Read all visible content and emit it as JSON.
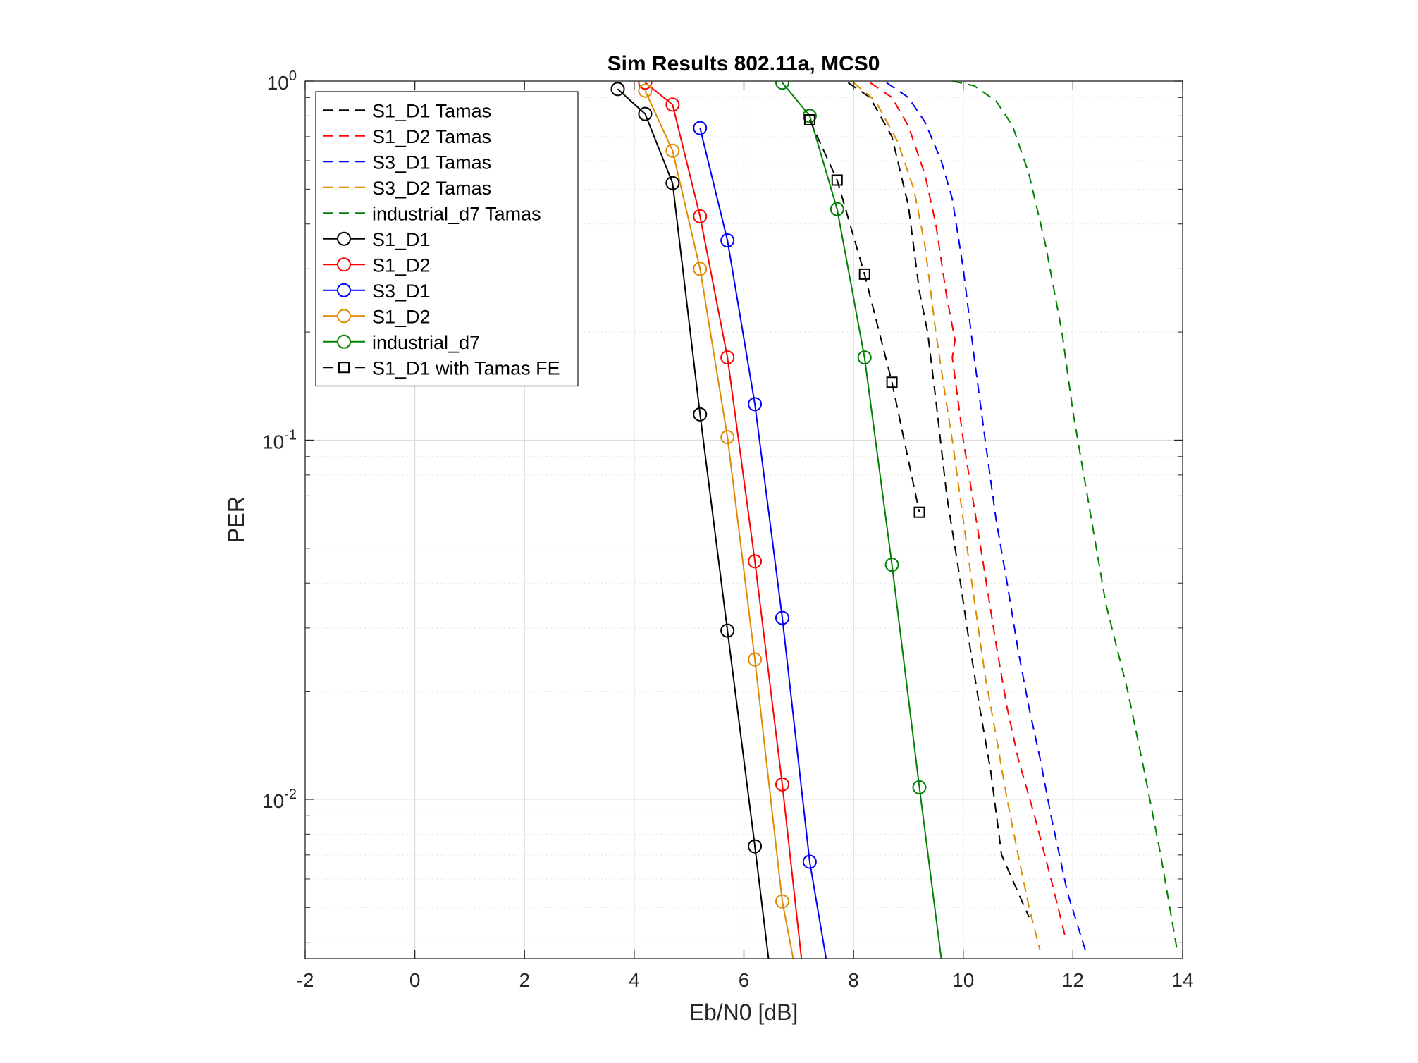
{
  "chart_data": {
    "type": "line",
    "title": "Sim Results 802.11a, MCS0",
    "xlabel": "Eb/N0 [dB]",
    "ylabel": "PER",
    "xlim": [
      -2,
      14
    ],
    "ylim": [
      0.0036,
      1
    ],
    "yscale": "log",
    "grid": true,
    "legend_position": "top-left",
    "xticks": [
      "-2",
      "0",
      "2",
      "4",
      "6",
      "8",
      "10",
      "12",
      "14"
    ],
    "xtick_values": [
      -2,
      0,
      2,
      4,
      6,
      8,
      10,
      12,
      14
    ],
    "yticks": [
      {
        "base": "10",
        "exp": "0",
        "value": 1
      },
      {
        "base": "10",
        "exp": "-1",
        "value": 0.1
      },
      {
        "base": "10",
        "exp": "-2",
        "value": 0.01
      }
    ],
    "series": [
      {
        "name": "S1_D1 Tamas",
        "color": "#000000",
        "style": "dashed",
        "marker": "none",
        "points": [
          [
            7.9,
            0.99
          ],
          [
            8.3,
            0.9
          ],
          [
            8.7,
            0.7
          ],
          [
            9.0,
            0.45
          ],
          [
            9.2,
            0.26
          ],
          [
            9.35,
            0.2
          ],
          [
            9.5,
            0.13
          ],
          [
            9.7,
            0.07
          ],
          [
            9.9,
            0.045
          ],
          [
            10.1,
            0.028
          ],
          [
            10.3,
            0.018
          ],
          [
            10.5,
            0.012
          ],
          [
            10.7,
            0.007
          ],
          [
            11.0,
            0.0055
          ],
          [
            11.2,
            0.0047
          ]
        ]
      },
      {
        "name": "S1_D2 Tamas",
        "color": "#ff0000",
        "style": "dashed",
        "marker": "none",
        "points": [
          [
            8.3,
            0.99
          ],
          [
            8.7,
            0.9
          ],
          [
            9.0,
            0.75
          ],
          [
            9.3,
            0.55
          ],
          [
            9.5,
            0.4
          ],
          [
            9.7,
            0.25
          ],
          [
            9.85,
            0.19
          ],
          [
            9.8,
            0.17
          ],
          [
            10.0,
            0.1
          ],
          [
            10.2,
            0.065
          ],
          [
            10.4,
            0.042
          ],
          [
            10.6,
            0.027
          ],
          [
            10.8,
            0.018
          ],
          [
            11.0,
            0.013
          ],
          [
            11.3,
            0.009
          ],
          [
            11.6,
            0.006
          ],
          [
            11.85,
            0.0042
          ]
        ]
      },
      {
        "name": "S3_D1 Tamas",
        "color": "#0000ff",
        "style": "dashed",
        "marker": "none",
        "points": [
          [
            8.6,
            0.99
          ],
          [
            9.0,
            0.9
          ],
          [
            9.3,
            0.77
          ],
          [
            9.6,
            0.6
          ],
          [
            9.8,
            0.47
          ],
          [
            10.0,
            0.3
          ],
          [
            10.2,
            0.17
          ],
          [
            10.4,
            0.1
          ],
          [
            10.6,
            0.06
          ],
          [
            10.8,
            0.04
          ],
          [
            11.0,
            0.026
          ],
          [
            11.2,
            0.018
          ],
          [
            11.4,
            0.013
          ],
          [
            11.6,
            0.009
          ],
          [
            11.9,
            0.0055
          ],
          [
            12.25,
            0.0037
          ]
        ]
      },
      {
        "name": "S3_D2 Tamas",
        "color": "#e08a00",
        "style": "dashed",
        "marker": "none",
        "points": [
          [
            8.0,
            0.99
          ],
          [
            8.4,
            0.88
          ],
          [
            8.8,
            0.68
          ],
          [
            9.1,
            0.5
          ],
          [
            9.3,
            0.35
          ],
          [
            9.5,
            0.2
          ],
          [
            9.65,
            0.14
          ],
          [
            9.8,
            0.1
          ],
          [
            10.0,
            0.06
          ],
          [
            10.2,
            0.036
          ],
          [
            10.4,
            0.022
          ],
          [
            10.6,
            0.015
          ],
          [
            10.8,
            0.01
          ],
          [
            11.0,
            0.007
          ],
          [
            11.2,
            0.005
          ],
          [
            11.4,
            0.0038
          ]
        ]
      },
      {
        "name": "industrial_d7 Tamas",
        "color": "#008000",
        "style": "dashed",
        "marker": "none",
        "points": [
          [
            9.8,
            1.0
          ],
          [
            10.2,
            0.97
          ],
          [
            10.6,
            0.88
          ],
          [
            10.9,
            0.75
          ],
          [
            11.2,
            0.55
          ],
          [
            11.5,
            0.35
          ],
          [
            11.8,
            0.2
          ],
          [
            12.0,
            0.12
          ],
          [
            12.3,
            0.065
          ],
          [
            12.6,
            0.035
          ],
          [
            13.0,
            0.02
          ],
          [
            13.3,
            0.012
          ],
          [
            13.6,
            0.007
          ],
          [
            13.9,
            0.0038
          ]
        ]
      },
      {
        "name": "S1_D1",
        "color": "#000000",
        "style": "solid",
        "marker": "circle",
        "points": [
          [
            3.7,
            0.95
          ],
          [
            4.2,
            0.81
          ],
          [
            4.7,
            0.52
          ],
          [
            5.2,
            0.118
          ],
          [
            5.7,
            0.0295
          ],
          [
            6.2,
            0.0074
          ],
          [
            6.45,
            0.0036
          ]
        ]
      },
      {
        "name": "S1_D2",
        "color": "#ff0000",
        "style": "solid",
        "marker": "circle",
        "points": [
          [
            4.2,
            0.99
          ],
          [
            4.7,
            0.86
          ],
          [
            5.2,
            0.42
          ],
          [
            5.7,
            0.17
          ],
          [
            6.2,
            0.046
          ],
          [
            6.7,
            0.011
          ],
          [
            7.05,
            0.0036
          ]
        ]
      },
      {
        "name": "S3_D1",
        "color": "#0000ff",
        "style": "solid",
        "marker": "circle",
        "points": [
          [
            5.2,
            0.74
          ],
          [
            5.7,
            0.36
          ],
          [
            6.2,
            0.126
          ],
          [
            6.7,
            0.032
          ],
          [
            7.2,
            0.0067
          ],
          [
            7.5,
            0.0036
          ]
        ]
      },
      {
        "name": "S1_D2",
        "color": "#e08a00",
        "style": "solid",
        "marker": "circle",
        "points": [
          [
            4.2,
            0.94
          ],
          [
            4.7,
            0.64
          ],
          [
            5.2,
            0.3
          ],
          [
            5.7,
            0.102
          ],
          [
            6.2,
            0.0245
          ],
          [
            6.7,
            0.0052
          ],
          [
            6.9,
            0.0036
          ]
        ]
      },
      {
        "name": "industrial_d7",
        "color": "#008000",
        "style": "solid",
        "marker": "circle",
        "points": [
          [
            6.7,
            0.99
          ],
          [
            7.2,
            0.8
          ],
          [
            7.7,
            0.44
          ],
          [
            8.2,
            0.17
          ],
          [
            8.7,
            0.045
          ],
          [
            9.2,
            0.0108
          ],
          [
            9.6,
            0.0036
          ]
        ]
      },
      {
        "name": "S1_D1 with Tamas FE",
        "color": "#000000",
        "style": "dashed",
        "marker": "square",
        "points": [
          [
            7.2,
            0.78
          ],
          [
            7.7,
            0.53
          ],
          [
            8.2,
            0.29
          ],
          [
            8.7,
            0.145
          ],
          [
            9.2,
            0.063
          ]
        ]
      }
    ]
  }
}
